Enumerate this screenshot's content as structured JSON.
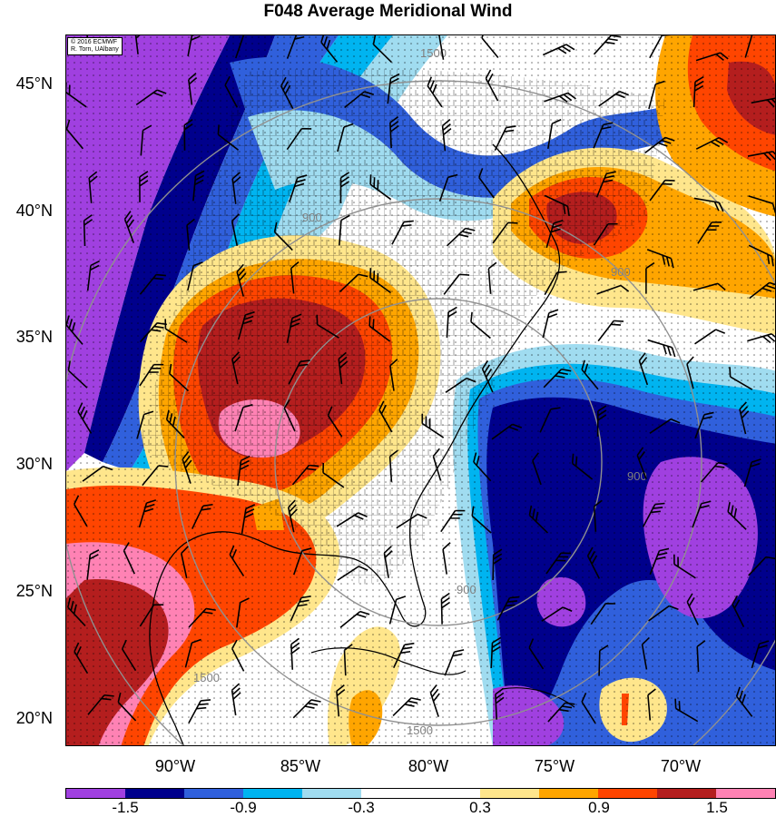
{
  "title": "F048 Average Meridional Wind",
  "credit": {
    "line1": "© 2016 ECMWF",
    "line2": "R. Torn, UAlbany"
  },
  "lat_labels": [
    "45°N",
    "40°N",
    "35°N",
    "30°N",
    "25°N",
    "20°N"
  ],
  "lon_labels": [
    "90°W",
    "85°W",
    "80°W",
    "75°W",
    "70°W"
  ],
  "contour_labels": [
    "1500",
    "900",
    "900",
    "900",
    "900",
    "1500",
    "1500"
  ],
  "colorbar": {
    "colors": [
      "#a040e0",
      "#00008c",
      "#3060dc",
      "#00b4f0",
      "#a0dcf0",
      "#ffffff",
      "#ffffff",
      "#ffe68c",
      "#ffa500",
      "#ff4500",
      "#b41e1e",
      "#ff82b4"
    ],
    "labels": [
      "-1.5",
      "-0.9",
      "-0.3",
      "0.3",
      "0.9",
      "1.5"
    ]
  },
  "colors": {
    "purple": "#a040e0",
    "navy": "#00008c",
    "blue": "#3060dc",
    "cyan": "#00b4f0",
    "lightblue": "#a0dcf0",
    "yellow": "#ffe68c",
    "orange": "#ffa500",
    "redorange": "#ff4500",
    "darkred": "#b41e1e",
    "pink": "#ff82b4"
  }
}
